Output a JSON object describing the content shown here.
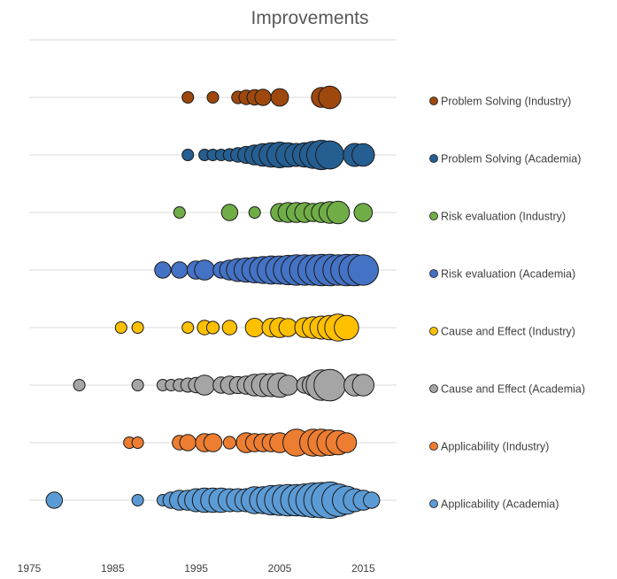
{
  "chart_data": {
    "type": "scatter",
    "subtype": "bubble",
    "title": "Improvements",
    "xlabel": "",
    "ylabel": "",
    "xlim": [
      1975,
      2019
    ],
    "x_ticks": [
      1975,
      1985,
      1995,
      2005,
      2015
    ],
    "grid": "horizontal lines at each series row",
    "legend_position": "right",
    "series": [
      {
        "name": "Problem Solving (Industry)",
        "color": "#9e480e",
        "points": [
          {
            "x": 1994,
            "size": 1
          },
          {
            "x": 1997,
            "size": 1
          },
          {
            "x": 2000,
            "size": 1.2
          },
          {
            "x": 2001,
            "size": 1.6
          },
          {
            "x": 2002,
            "size": 1.8
          },
          {
            "x": 2003,
            "size": 2
          },
          {
            "x": 2005,
            "size": 2.3
          },
          {
            "x": 2010,
            "size": 3
          },
          {
            "x": 2011,
            "size": 3.8
          }
        ]
      },
      {
        "name": "Problem Solving (Academia)",
        "color": "#255e91",
        "points": [
          {
            "x": 1994,
            "size": 1
          },
          {
            "x": 1996,
            "size": 1
          },
          {
            "x": 1997,
            "size": 1
          },
          {
            "x": 1998,
            "size": 1
          },
          {
            "x": 1999,
            "size": 1.2
          },
          {
            "x": 2000,
            "size": 1.6
          },
          {
            "x": 2001,
            "size": 2.2
          },
          {
            "x": 2002,
            "size": 3
          },
          {
            "x": 2003,
            "size": 3.8
          },
          {
            "x": 2004,
            "size": 4.5
          },
          {
            "x": 2005,
            "size": 5
          },
          {
            "x": 2006,
            "size": 4.5
          },
          {
            "x": 2007,
            "size": 4
          },
          {
            "x": 2008,
            "size": 4.5
          },
          {
            "x": 2009,
            "size": 5.5
          },
          {
            "x": 2010,
            "size": 6.5
          },
          {
            "x": 2011,
            "size": 6
          },
          {
            "x": 2014,
            "size": 4
          },
          {
            "x": 2015,
            "size": 3.8
          }
        ]
      },
      {
        "name": "Risk evaluation (Industry)",
        "color": "#70ad47",
        "points": [
          {
            "x": 1993,
            "size": 1
          },
          {
            "x": 1999,
            "size": 2
          },
          {
            "x": 2002,
            "size": 1
          },
          {
            "x": 2005,
            "size": 2.5
          },
          {
            "x": 2006,
            "size": 3
          },
          {
            "x": 2007,
            "size": 3
          },
          {
            "x": 2008,
            "size": 3
          },
          {
            "x": 2009,
            "size": 2.5
          },
          {
            "x": 2010,
            "size": 3
          },
          {
            "x": 2011,
            "size": 3.5
          },
          {
            "x": 2012,
            "size": 3.8
          },
          {
            "x": 2015,
            "size": 2.5
          }
        ]
      },
      {
        "name": "Risk evaluation (Academia)",
        "color": "#4472c4",
        "points": [
          {
            "x": 1991,
            "size": 2
          },
          {
            "x": 1993,
            "size": 2
          },
          {
            "x": 1995,
            "size": 2.5
          },
          {
            "x": 1996,
            "size": 3
          },
          {
            "x": 1998,
            "size": 2
          },
          {
            "x": 1999,
            "size": 3
          },
          {
            "x": 2000,
            "size": 4
          },
          {
            "x": 2001,
            "size": 4.5
          },
          {
            "x": 2002,
            "size": 5
          },
          {
            "x": 2003,
            "size": 5.5
          },
          {
            "x": 2004,
            "size": 6
          },
          {
            "x": 2005,
            "size": 6
          },
          {
            "x": 2006,
            "size": 6.5
          },
          {
            "x": 2007,
            "size": 7
          },
          {
            "x": 2008,
            "size": 7
          },
          {
            "x": 2009,
            "size": 7
          },
          {
            "x": 2010,
            "size": 7.5
          },
          {
            "x": 2011,
            "size": 7.5
          },
          {
            "x": 2012,
            "size": 7
          },
          {
            "x": 2013,
            "size": 7.5
          },
          {
            "x": 2014,
            "size": 7.5
          },
          {
            "x": 2015,
            "size": 7
          }
        ]
      },
      {
        "name": "Cause and Effect (Industry)",
        "color": "#ffc000",
        "points": [
          {
            "x": 1986,
            "size": 1
          },
          {
            "x": 1988,
            "size": 1
          },
          {
            "x": 1994,
            "size": 1
          },
          {
            "x": 1996,
            "size": 1.6
          },
          {
            "x": 1997,
            "size": 1.2
          },
          {
            "x": 1999,
            "size": 1.6
          },
          {
            "x": 2002,
            "size": 2.6
          },
          {
            "x": 2004,
            "size": 2.6
          },
          {
            "x": 2005,
            "size": 3
          },
          {
            "x": 2006,
            "size": 2.5
          },
          {
            "x": 2008,
            "size": 3
          },
          {
            "x": 2009,
            "size": 3.5
          },
          {
            "x": 2010,
            "size": 4
          },
          {
            "x": 2011,
            "size": 4.5
          },
          {
            "x": 2012,
            "size": 5.5
          },
          {
            "x": 2013,
            "size": 4.5
          }
        ]
      },
      {
        "name": "Cause and Effect (Academia)",
        "color": "#a5a5a5",
        "points": [
          {
            "x": 1981,
            "size": 1
          },
          {
            "x": 1988,
            "size": 1
          },
          {
            "x": 1991,
            "size": 1
          },
          {
            "x": 1992,
            "size": 1
          },
          {
            "x": 1993,
            "size": 1.2
          },
          {
            "x": 1994,
            "size": 1.5
          },
          {
            "x": 1995,
            "size": 1.8
          },
          {
            "x": 1996,
            "size": 3
          },
          {
            "x": 1998,
            "size": 2
          },
          {
            "x": 1999,
            "size": 2.5
          },
          {
            "x": 2000,
            "size": 2.2
          },
          {
            "x": 2001,
            "size": 2.5
          },
          {
            "x": 2002,
            "size": 3.5
          },
          {
            "x": 2003,
            "size": 4
          },
          {
            "x": 2004,
            "size": 4
          },
          {
            "x": 2005,
            "size": 4.5
          },
          {
            "x": 2006,
            "size": 3
          },
          {
            "x": 2008,
            "size": 2
          },
          {
            "x": 2009,
            "size": 3.5
          },
          {
            "x": 2010,
            "size": 7
          },
          {
            "x": 2011,
            "size": 7.5
          },
          {
            "x": 2014,
            "size": 3.5
          },
          {
            "x": 2015,
            "size": 3.5
          }
        ]
      },
      {
        "name": "Applicability (Industry)",
        "color": "#ed7d31",
        "points": [
          {
            "x": 1987,
            "size": 1
          },
          {
            "x": 1988,
            "size": 1
          },
          {
            "x": 1993,
            "size": 1.6
          },
          {
            "x": 1994,
            "size": 2
          },
          {
            "x": 1996,
            "size": 2.5
          },
          {
            "x": 1997,
            "size": 2.5
          },
          {
            "x": 1999,
            "size": 1.2
          },
          {
            "x": 2001,
            "size": 3
          },
          {
            "x": 2002,
            "size": 2.5
          },
          {
            "x": 2003,
            "size": 2.5
          },
          {
            "x": 2004,
            "size": 2.5
          },
          {
            "x": 2005,
            "size": 3
          },
          {
            "x": 2007,
            "size": 5.5
          },
          {
            "x": 2009,
            "size": 5.5
          },
          {
            "x": 2010,
            "size": 5.5
          },
          {
            "x": 2011,
            "size": 5
          },
          {
            "x": 2012,
            "size": 4.5
          },
          {
            "x": 2013,
            "size": 3
          }
        ]
      },
      {
        "name": "Applicability (Academia)",
        "color": "#5b9bd5",
        "points": [
          {
            "x": 1978,
            "size": 2
          },
          {
            "x": 1988,
            "size": 1
          },
          {
            "x": 1991,
            "size": 1
          },
          {
            "x": 1992,
            "size": 2
          },
          {
            "x": 1993,
            "size": 3
          },
          {
            "x": 1994,
            "size": 3
          },
          {
            "x": 1995,
            "size": 4
          },
          {
            "x": 1996,
            "size": 4.5
          },
          {
            "x": 1997,
            "size": 4.5
          },
          {
            "x": 1998,
            "size": 4.5
          },
          {
            "x": 1999,
            "size": 4
          },
          {
            "x": 2000,
            "size": 4
          },
          {
            "x": 2001,
            "size": 4
          },
          {
            "x": 2002,
            "size": 5.5
          },
          {
            "x": 2003,
            "size": 5.5
          },
          {
            "x": 2004,
            "size": 6.5
          },
          {
            "x": 2005,
            "size": 7
          },
          {
            "x": 2006,
            "size": 7.5
          },
          {
            "x": 2007,
            "size": 7.5
          },
          {
            "x": 2008,
            "size": 8
          },
          {
            "x": 2009,
            "size": 9
          },
          {
            "x": 2010,
            "size": 9.5
          },
          {
            "x": 2011,
            "size": 10
          },
          {
            "x": 2012,
            "size": 8
          },
          {
            "x": 2013,
            "size": 6
          },
          {
            "x": 2014,
            "size": 4
          },
          {
            "x": 2015,
            "size": 3
          },
          {
            "x": 2016,
            "size": 2
          }
        ]
      }
    ]
  }
}
